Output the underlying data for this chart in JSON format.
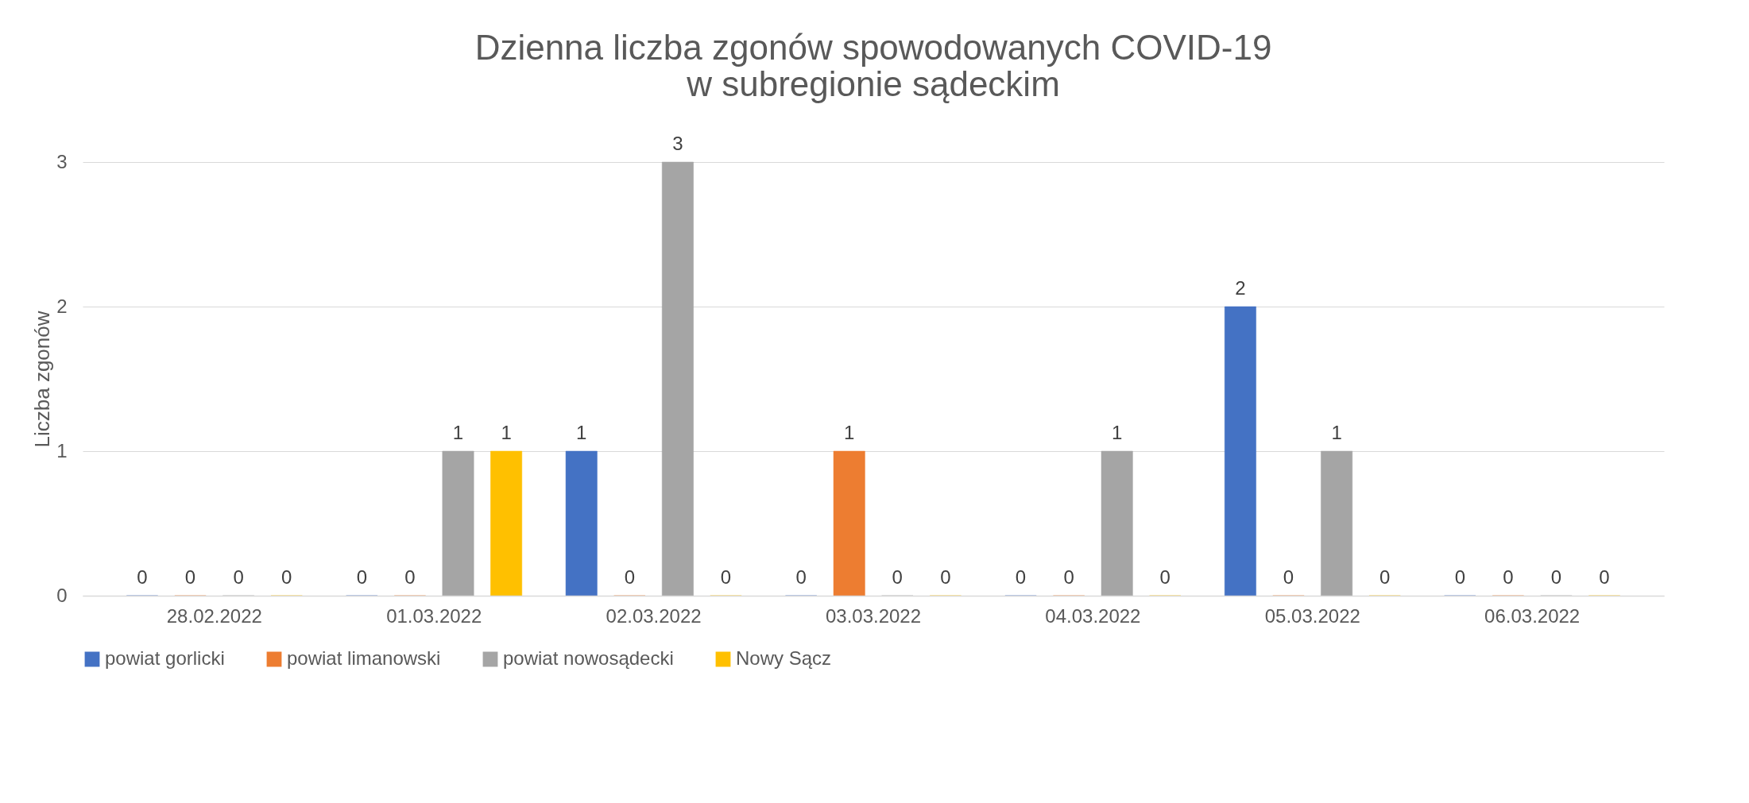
{
  "chart_data": {
    "type": "bar",
    "title": [
      "Dzienna liczba zgonów spowodowanych COVID-19",
      "w subregionie sądeckim"
    ],
    "ylabel": "Liczba zgonów",
    "categories": [
      "28.02.2022",
      "01.03.2022",
      "02.03.2022",
      "03.03.2022",
      "04.03.2022",
      "05.03.2022",
      "06.03.2022"
    ],
    "series": [
      {
        "name": "powiat gorlicki",
        "color": "#4472c4",
        "values": [
          0,
          0,
          1,
          0,
          0,
          2,
          0
        ]
      },
      {
        "name": "powiat limanowski",
        "color": "#ed7d31",
        "values": [
          0,
          0,
          0,
          1,
          0,
          0,
          0
        ]
      },
      {
        "name": "powiat nowosądecki",
        "color": "#a5a5a5",
        "values": [
          0,
          1,
          3,
          0,
          1,
          1,
          0
        ]
      },
      {
        "name": "Nowy Sącz",
        "color": "#ffc000",
        "values": [
          0,
          1,
          0,
          0,
          0,
          0,
          0
        ]
      }
    ],
    "ylim": [
      0,
      3
    ],
    "yticks": [
      0,
      1,
      2,
      3
    ],
    "grid": "y",
    "legend": "bottom",
    "data_labels": true
  }
}
